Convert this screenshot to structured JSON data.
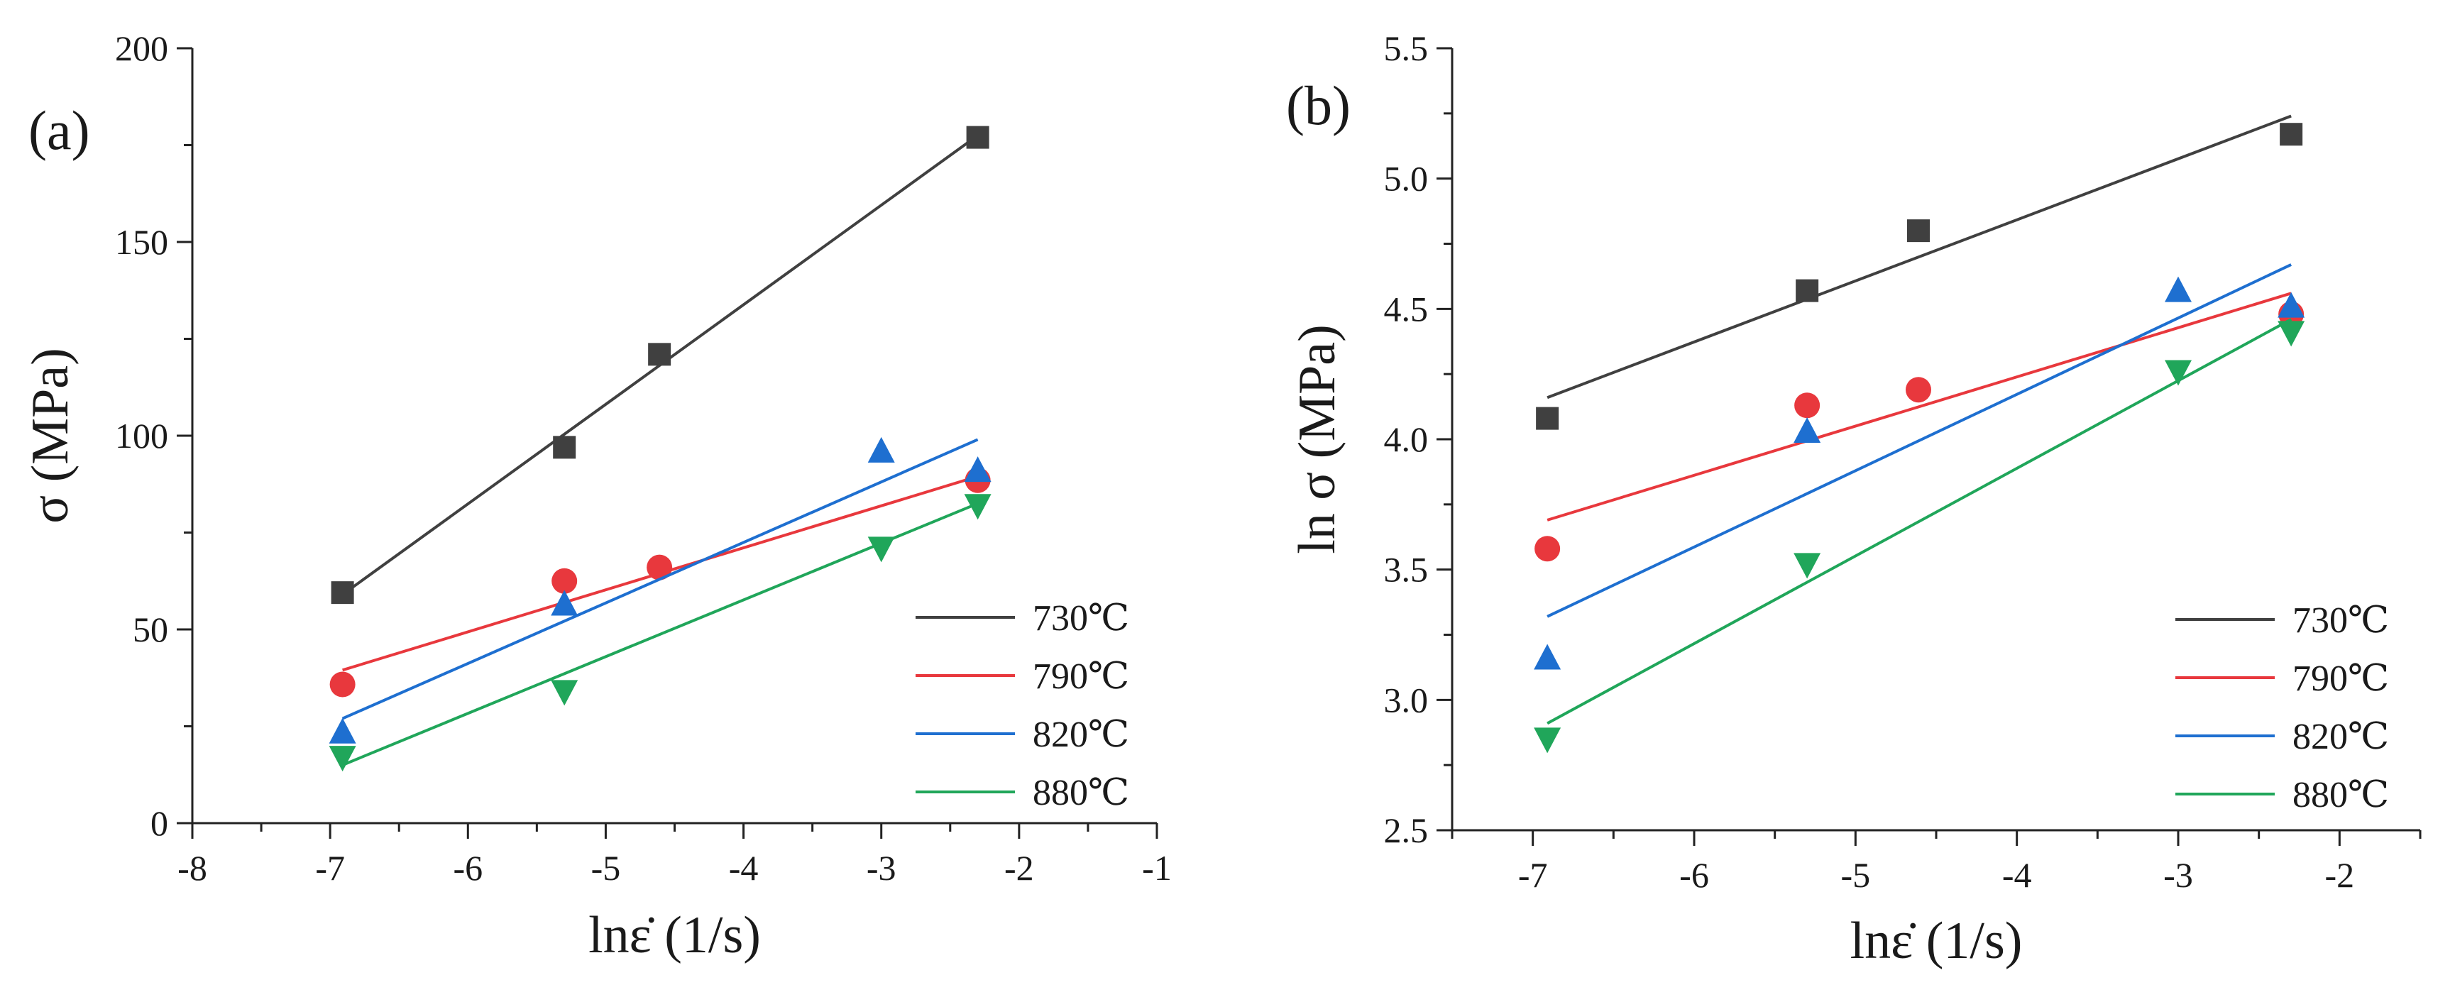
{
  "chart_data": [
    {
      "id": "a",
      "type": "scatter",
      "panel_label": "(a)",
      "xlabel": "lnε̇ (1/s)",
      "ylabel": "σ (MPa)",
      "xlim": [
        -8,
        -1
      ],
      "ylim": [
        0,
        200
      ],
      "xticks": [
        -8,
        -7,
        -6,
        -5,
        -4,
        -3,
        -2,
        -1
      ],
      "xtick_labels": [
        "-8",
        "-7",
        "-6",
        "-5",
        "-4",
        "-3",
        "-2",
        "-1"
      ],
      "yticks": [
        0,
        50,
        100,
        150,
        200
      ],
      "ytick_labels": [
        "0",
        "50",
        "100",
        "150",
        "200"
      ],
      "legend_position": "bottom-right",
      "series": [
        {
          "name": "730℃",
          "color": "#404040",
          "marker": "square",
          "x": [
            -6.91,
            -5.3,
            -4.61,
            -2.3
          ],
          "y": [
            59.5,
            97.0,
            121.0,
            177.0
          ],
          "fit_x": [
            -6.91,
            -2.3
          ],
          "fit_y": [
            59.0,
            177.5
          ]
        },
        {
          "name": "790℃",
          "color": "#e8383d",
          "marker": "circle",
          "x": [
            -6.91,
            -5.3,
            -4.61,
            -2.3
          ],
          "y": [
            35.8,
            62.5,
            66.0,
            88.5
          ],
          "fit_x": [
            -6.91,
            -2.3
          ],
          "fit_y": [
            39.5,
            89.5
          ]
        },
        {
          "name": "820℃",
          "color": "#1e6fd0",
          "marker": "triangle-up",
          "x": [
            -6.91,
            -5.3,
            -3.0,
            -2.3
          ],
          "y": [
            23.5,
            56.5,
            96.0,
            91.0
          ],
          "fit_x": [
            -6.91,
            -2.3
          ],
          "fit_y": [
            27.0,
            99.0
          ]
        },
        {
          "name": "880℃",
          "color": "#20a65a",
          "marker": "triangle-down",
          "x": [
            -6.91,
            -5.3,
            -3.0,
            -2.3
          ],
          "y": [
            17.0,
            34.0,
            71.0,
            82.0
          ],
          "fit_x": [
            -6.91,
            -2.3
          ],
          "fit_y": [
            15.0,
            82.5
          ]
        }
      ]
    },
    {
      "id": "b",
      "type": "scatter",
      "panel_label": "(b)",
      "xlabel": "lnε̇ (1/s)",
      "ylabel": "ln σ (MPa)",
      "xlim": [
        -7.5,
        -1.5
      ],
      "ylim": [
        2.5,
        5.5
      ],
      "xticks": [
        -7,
        -6,
        -5,
        -4,
        -3,
        -2
      ],
      "xtick_labels": [
        "-7",
        "-6",
        "-5",
        "-4",
        "-3",
        "-2"
      ],
      "yticks": [
        2.5,
        3.0,
        3.5,
        4.0,
        4.5,
        5.0,
        5.5
      ],
      "ytick_labels": [
        "2.5",
        "3.0",
        "3.5",
        "4.0",
        "4.5",
        "5.0",
        "5.5"
      ],
      "legend_position": "bottom-right",
      "series": [
        {
          "name": "730℃",
          "color": "#404040",
          "marker": "square",
          "x": [
            -6.91,
            -5.3,
            -4.61,
            -2.3
          ],
          "y": [
            4.08,
            4.57,
            4.8,
            5.17
          ],
          "fit_x": [
            -6.91,
            -2.3
          ],
          "fit_y": [
            4.16,
            5.24
          ]
        },
        {
          "name": "790℃",
          "color": "#e8383d",
          "marker": "circle",
          "x": [
            -6.91,
            -5.3,
            -4.61,
            -2.3
          ],
          "y": [
            3.58,
            4.13,
            4.19,
            4.48
          ],
          "fit_x": [
            -6.91,
            -2.3
          ],
          "fit_y": [
            3.69,
            4.56
          ]
        },
        {
          "name": "820℃",
          "color": "#1e6fd0",
          "marker": "triangle-up",
          "x": [
            -6.91,
            -5.3,
            -3.0,
            -2.3
          ],
          "y": [
            3.16,
            4.03,
            4.57,
            4.51
          ],
          "fit_x": [
            -6.91,
            -2.3
          ],
          "fit_y": [
            3.32,
            4.67
          ]
        },
        {
          "name": "880℃",
          "color": "#20a65a",
          "marker": "triangle-down",
          "x": [
            -6.91,
            -5.3,
            -3.0,
            -2.3
          ],
          "y": [
            2.85,
            3.52,
            4.26,
            4.41
          ],
          "fit_x": [
            -6.91,
            -2.3
          ],
          "fit_y": [
            2.91,
            4.46
          ]
        }
      ]
    }
  ]
}
